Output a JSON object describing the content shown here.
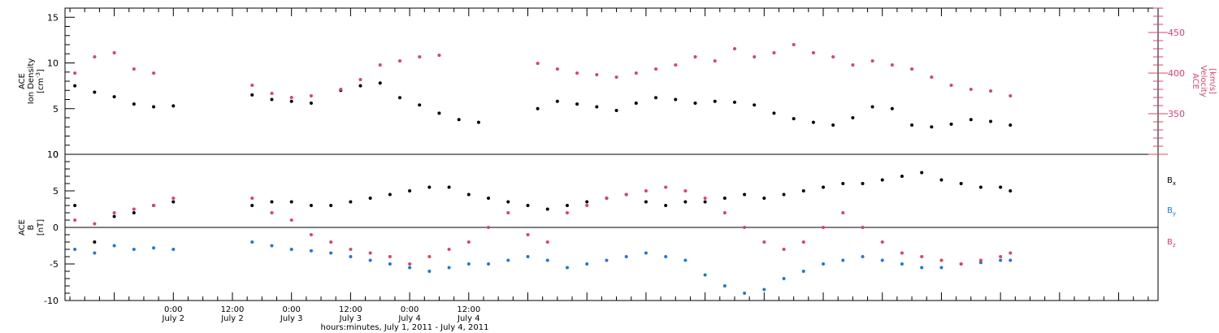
{
  "chart_data": [
    {
      "type": "scatter",
      "panel": "plasma",
      "ylabel_left": [
        "ACE",
        "Ion Density",
        "[cm-3]"
      ],
      "ylabel_right": [
        "ACE",
        "Velocity",
        "[km/s]"
      ],
      "left_ylim": [
        0,
        16
      ],
      "left_ticks": [
        "0",
        "5",
        "10",
        "15"
      ],
      "right_ylim": [
        300,
        480
      ],
      "right_ticks": [
        "350",
        "400",
        "450"
      ],
      "right_axis_color": "#e0406a",
      "series": [
        {
          "axis": "left",
          "color": "#000000",
          "x": [
            -20,
            -16,
            -12,
            -8,
            -4,
            0,
            4,
            8,
            12,
            16,
            20,
            24,
            28,
            34,
            38,
            42,
            46,
            50,
            54,
            58,
            62,
            66,
            70,
            74,
            78,
            82,
            86,
            90,
            94,
            98,
            102,
            106,
            110,
            114,
            118,
            122,
            126,
            130,
            134,
            138,
            142,
            146,
            150,
            154,
            158,
            162,
            166,
            170
          ],
          "y": [
            7.5,
            6.8,
            6.3,
            5.5,
            5.2,
            5.3,
            null,
            null,
            null,
            6.5,
            6.0,
            5.8,
            5.6,
            7.0,
            7.5,
            7.8,
            6.2,
            5.4,
            4.5,
            3.8,
            3.5,
            null,
            null,
            5.0,
            5.8,
            5.5,
            5.2,
            4.8,
            5.6,
            6.2,
            6.0,
            5.6,
            5.8,
            5.7,
            5.4,
            4.5,
            3.9,
            3.5,
            3.2,
            4.0,
            5.2,
            5.0,
            3.2,
            3.0,
            3.3,
            3.8,
            3.6,
            3.2
          ]
        },
        {
          "axis": "right",
          "color": "#e0406a",
          "x": [
            -20,
            -16,
            -12,
            -8,
            -4,
            0,
            4,
            8,
            12,
            16,
            20,
            24,
            28,
            34,
            38,
            42,
            46,
            50,
            54,
            58,
            62,
            66,
            70,
            74,
            78,
            82,
            86,
            90,
            94,
            98,
            102,
            106,
            110,
            114,
            118,
            122,
            126,
            130,
            134,
            138,
            142,
            146,
            150,
            154,
            158,
            162,
            166,
            170
          ],
          "y": [
            400,
            420,
            425,
            405,
            400,
            null,
            null,
            null,
            null,
            385,
            375,
            370,
            372,
            380,
            392,
            410,
            415,
            420,
            422,
            null,
            null,
            null,
            null,
            412,
            405,
            400,
            398,
            395,
            400,
            405,
            410,
            420,
            415,
            430,
            420,
            425,
            435,
            425,
            420,
            410,
            415,
            410,
            405,
            395,
            385,
            380,
            378,
            372
          ]
        }
      ]
    },
    {
      "type": "scatter",
      "panel": "magnetic field",
      "ylabel": [
        "ACE",
        "B",
        "[nT]"
      ],
      "ylim": [
        -10,
        10
      ],
      "yticks": [
        "-10",
        "-5",
        "0",
        "5",
        "10"
      ],
      "legend": [
        "Bx",
        "By",
        "Bz"
      ],
      "series": [
        {
          "name": "Bx",
          "color": "#000000",
          "x": [
            -20,
            -16,
            -12,
            -8,
            -4,
            0,
            4,
            8,
            12,
            16,
            20,
            24,
            28,
            32,
            36,
            40,
            44,
            48,
            52,
            56,
            60,
            64,
            68,
            72,
            76,
            80,
            84,
            88,
            92,
            96,
            100,
            104,
            108,
            112,
            116,
            120,
            124,
            128,
            132,
            136,
            140,
            144,
            148,
            152,
            156,
            160,
            164,
            168,
            170
          ],
          "y": [
            3.0,
            -2.0,
            1.5,
            2.0,
            3.0,
            3.5,
            null,
            null,
            null,
            3.0,
            3.5,
            3.5,
            3.0,
            3.0,
            3.5,
            4.0,
            4.5,
            5.0,
            5.5,
            5.5,
            4.5,
            4.0,
            3.5,
            3.0,
            2.5,
            3.0,
            3.5,
            4.0,
            4.5,
            3.5,
            3.0,
            3.5,
            3.5,
            4.0,
            4.5,
            4.0,
            4.5,
            5.0,
            5.5,
            6.0,
            6.0,
            6.5,
            7.0,
            7.5,
            6.5,
            6.0,
            5.5,
            5.5,
            5.0
          ]
        },
        {
          "name": "By",
          "color": "#1f78d8",
          "x": [
            -20,
            -16,
            -12,
            -8,
            -4,
            0,
            4,
            8,
            12,
            16,
            20,
            24,
            28,
            32,
            36,
            40,
            44,
            48,
            52,
            56,
            60,
            64,
            68,
            72,
            76,
            80,
            84,
            88,
            92,
            96,
            100,
            104,
            108,
            112,
            116,
            120,
            124,
            128,
            132,
            136,
            140,
            144,
            148,
            152,
            156,
            160,
            164,
            168,
            170
          ],
          "y": [
            -3.0,
            -3.5,
            -2.5,
            -3.0,
            -2.8,
            -3.0,
            null,
            null,
            null,
            -2.0,
            -2.5,
            -3.0,
            -3.2,
            -3.5,
            -4.0,
            -4.5,
            -5.0,
            -5.5,
            -6.0,
            -5.5,
            -5.0,
            -5.0,
            -4.5,
            -4.0,
            -4.5,
            -5.5,
            -5.0,
            -4.5,
            -4.0,
            -3.5,
            -4.0,
            -4.5,
            -6.5,
            -8.0,
            -9.0,
            -8.5,
            -7.0,
            -6.0,
            -5.0,
            -4.5,
            -4.0,
            -4.5,
            -5.0,
            -5.5,
            -5.5,
            -5.0,
            -4.8,
            -4.5,
            -4.5
          ]
        },
        {
          "name": "Bz",
          "color": "#e0406a",
          "x": [
            -20,
            -16,
            -12,
            -8,
            -4,
            0,
            4,
            8,
            12,
            16,
            20,
            24,
            28,
            32,
            36,
            40,
            44,
            48,
            52,
            56,
            60,
            64,
            68,
            72,
            76,
            80,
            84,
            88,
            92,
            96,
            100,
            104,
            108,
            112,
            116,
            120,
            124,
            128,
            132,
            136,
            140,
            144,
            148,
            152,
            156,
            160,
            164,
            168,
            170
          ],
          "y": [
            1.0,
            0.5,
            2.0,
            2.5,
            3.0,
            4.0,
            null,
            null,
            null,
            4.0,
            2.0,
            1.0,
            -1.0,
            -2.0,
            -3.0,
            -3.5,
            -4.0,
            -5.0,
            -4.0,
            -3.0,
            -2.0,
            0.0,
            2.0,
            -1.0,
            -2.0,
            2.0,
            3.0,
            4.0,
            4.5,
            5.0,
            5.5,
            5.0,
            4.0,
            2.0,
            0.0,
            -2.0,
            -3.0,
            -2.0,
            0.0,
            2.0,
            0.0,
            -2.0,
            -3.5,
            -4.0,
            -4.5,
            -5.0,
            -4.5,
            -4.0,
            -3.5
          ]
        }
      ]
    }
  ],
  "labels": {
    "bx_sub": "x",
    "by_sub": "y",
    "bz_sub": "z",
    "b_base": "B",
    "density_unit_base": "[cm",
    "density_unit_exp": "-3",
    "density_unit_close": "]"
  },
  "xaxis": {
    "xlim_hours": [
      -22,
      200
    ],
    "tick_step_hours": 3,
    "labeled_ticks": [
      {
        "hours": 0,
        "time": "0:00",
        "day": "July 2"
      },
      {
        "hours": 12,
        "time": "12:00",
        "day": "July 2"
      },
      {
        "hours": 24,
        "time": "0:00",
        "day": "July 3"
      },
      {
        "hours": 36,
        "time": "12:00",
        "day": "July 3"
      },
      {
        "hours": 48,
        "time": "0:00",
        "day": "July 4"
      },
      {
        "hours": 60,
        "time": "12:00",
        "day": "July 4"
      }
    ],
    "label": "hours:minutes, July  1, 2011 - July  4, 2011"
  }
}
